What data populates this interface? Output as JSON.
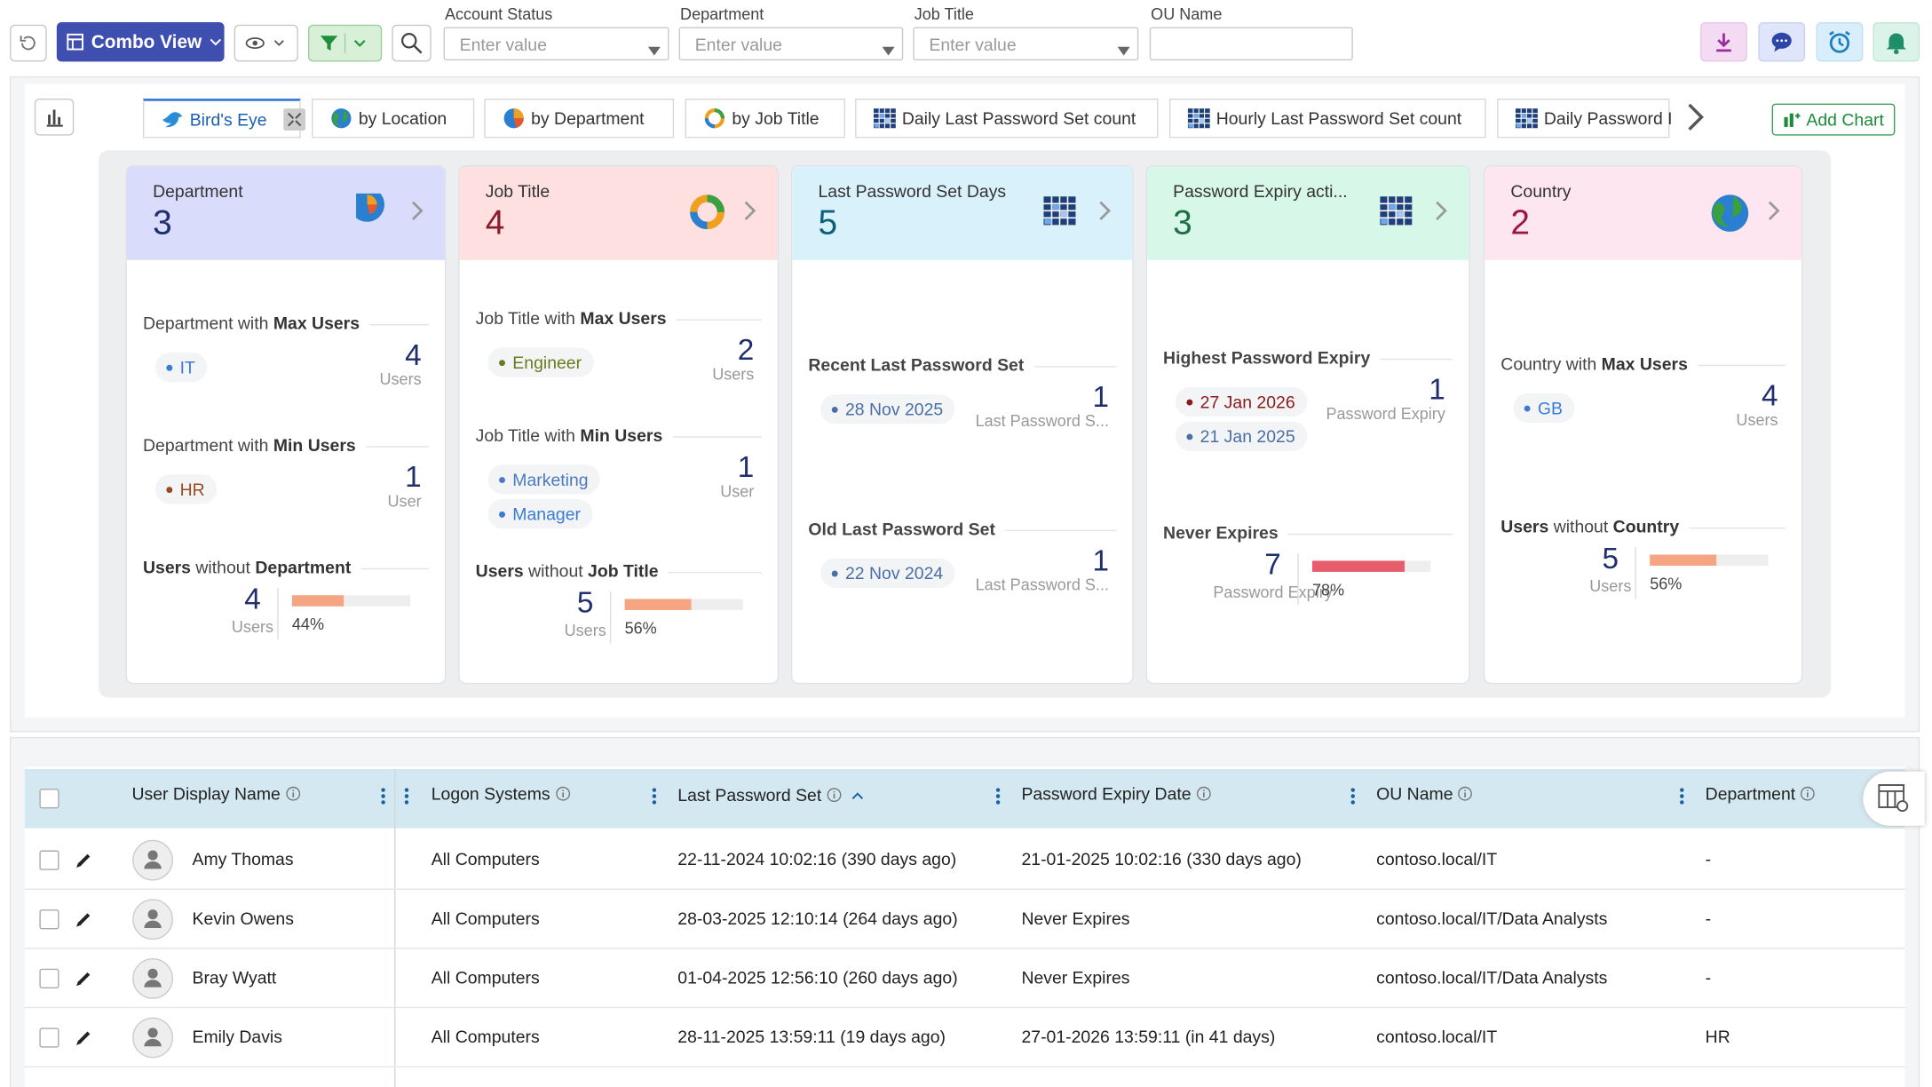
{
  "toolbar": {
    "view": "Combo View",
    "filters": [
      {
        "label": "Account Status",
        "placeholder": "Enter value"
      },
      {
        "label": "Department",
        "placeholder": "Enter value"
      },
      {
        "label": "Job Title",
        "placeholder": "Enter value"
      },
      {
        "label": "OU Name"
      }
    ]
  },
  "tabs": [
    "Bird's Eye",
    "by Location",
    "by Department",
    "by Job Title",
    "Daily Last Password Set count",
    "Hourly Last Password Set count",
    "Daily Password I"
  ],
  "add_chart": "Add Chart",
  "cards": [
    {
      "title": "Department",
      "count": 3,
      "header_color": "#d9dcfb",
      "count_color": "#1f2f6e",
      "sections": [
        {
          "heading": [
            {
              "text": "Department with"
            },
            {
              "text": "Max Users",
              "bold": true
            }
          ],
          "tags": [
            {
              "text": "IT",
              "color": "#3a7bd5"
            }
          ],
          "value": 4,
          "unit": "Users"
        },
        {
          "heading": [
            {
              "text": "Department with"
            },
            {
              "text": "Min Users",
              "bold": true
            }
          ],
          "tags": [
            {
              "text": "HR",
              "color": "#9a4a22"
            }
          ],
          "value": 1,
          "unit": "User"
        },
        {
          "heading": [
            {
              "text": "Users",
              "bold": true
            },
            {
              "text": "without"
            },
            {
              "text": "Department",
              "bold": true
            }
          ],
          "value": 4,
          "unit": "Users",
          "percent": {
            "value": 44,
            "label": "44%"
          },
          "bar_color": "#f5a582"
        }
      ]
    },
    {
      "title": "Job Title",
      "count": 4,
      "header_color": "#fde0df",
      "count_color": "#8b1a2b",
      "sections": [
        {
          "heading": [
            {
              "text": "Job Title with"
            },
            {
              "text": "Max Users",
              "bold": true
            }
          ],
          "tags": [
            {
              "text": "Engineer",
              "color": "#6b7a1f"
            }
          ],
          "value": 2,
          "unit": "Users"
        },
        {
          "heading": [
            {
              "text": "Job Title with"
            },
            {
              "text": "Min Users",
              "bold": true
            }
          ],
          "tags": [
            {
              "text": "Marketing",
              "color": "#4a7ac0"
            },
            {
              "text": "Manager",
              "color": "#3a7bd5"
            }
          ],
          "value": 1,
          "unit": "User"
        },
        {
          "heading": [
            {
              "text": "Users",
              "bold": true
            },
            {
              "text": "without"
            },
            {
              "text": "Job Title",
              "bold": true
            }
          ],
          "value": 5,
          "unit": "Users",
          "percent": {
            "value": 56,
            "label": "56%"
          },
          "bar_color": "#f5a582"
        }
      ]
    },
    {
      "title": "Last Password Set Days",
      "count": 5,
      "header_color": "#d9f1fb",
      "count_color": "#0b5f7a",
      "sections": [
        {
          "heading": [
            {
              "text": "Recent Last Password Set"
            }
          ],
          "tags": [
            {
              "text": "28 Nov 2025",
              "color": "#4a6fa5"
            }
          ],
          "value": 1,
          "unit": "Last Password S..."
        },
        {
          "heading": [
            {
              "text": "Old Last Password Set"
            }
          ],
          "tags": [
            {
              "text": "22 Nov 2024",
              "color": "#4a6fa5"
            }
          ],
          "value": 1,
          "unit": "Last Password S..."
        }
      ]
    },
    {
      "title": "Password Expiry acti...",
      "count": 3,
      "header_color": "#d7f8e9",
      "count_color": "#1f6e46",
      "sections": [
        {
          "heading": [
            {
              "text": "Highest Password Expiry"
            }
          ],
          "tags": [
            {
              "text": "27 Jan 2026",
              "color": "#8b1a1a"
            },
            {
              "text": "21 Jan 2025",
              "color": "#4a6fa5"
            }
          ],
          "value": 1,
          "unit": "Password Expiry"
        },
        {
          "heading": [
            {
              "text": "Never Expires"
            }
          ],
          "value": 7,
          "unit": "Password Expiry",
          "percent": {
            "value": 78,
            "label": "78%"
          },
          "bar_color": "#e85d6c"
        }
      ]
    },
    {
      "title": "Country",
      "count": 2,
      "header_color": "#fde6ef",
      "count_color": "#9c1642",
      "sections": [
        {
          "heading": [
            {
              "text": "Country with"
            },
            {
              "text": "Max Users",
              "bold": true
            }
          ],
          "tags": [
            {
              "text": "GB",
              "color": "#3a7bd5"
            }
          ],
          "value": 4,
          "unit": "Users"
        },
        {
          "heading": [
            {
              "text": "Users",
              "bold": true
            },
            {
              "text": "without"
            },
            {
              "text": "Country",
              "bold": true
            }
          ],
          "value": 5,
          "unit": "Users",
          "percent": {
            "value": 56,
            "label": "56%"
          },
          "bar_color": "#f5a582"
        }
      ]
    }
  ],
  "table": {
    "columns": [
      "User Display Name",
      "Logon Systems",
      "Last Password Set",
      "Password Expiry Date",
      "OU Name",
      "Department"
    ],
    "rows": [
      [
        "Amy Thomas",
        "All Computers",
        "22-11-2024 10:02:16 (390 days ago)",
        "21-01-2025 10:02:16 (330 days ago)",
        "contoso.local/IT",
        "-"
      ],
      [
        "Kevin Owens",
        "All Computers",
        "28-03-2025 12:10:14 (264 days ago)",
        "Never Expires",
        "contoso.local/IT/Data Analysts",
        "-"
      ],
      [
        "Bray Wyatt",
        "All Computers",
        "01-04-2025 12:56:10 (260 days ago)",
        "Never Expires",
        "contoso.local/IT/Data Analysts",
        "-"
      ],
      [
        "Emily Davis",
        "All Computers",
        "28-11-2025 13:59:11 (19 days ago)",
        "27-01-2026 13:59:11 (in 41 days)",
        "contoso.local/IT",
        "HR"
      ]
    ]
  }
}
